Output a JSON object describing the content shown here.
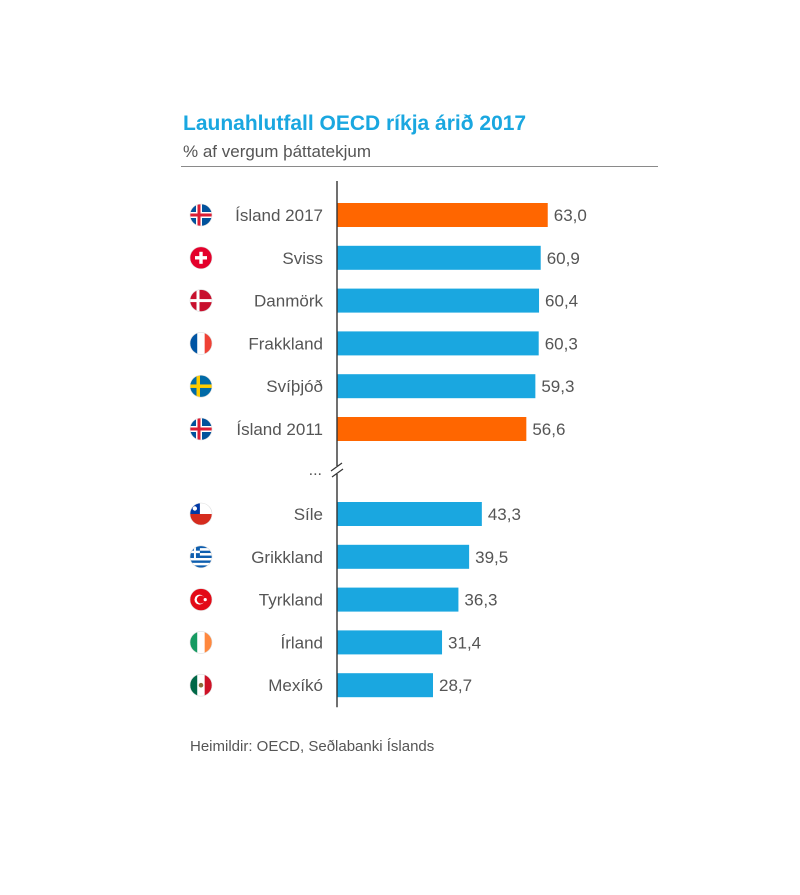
{
  "title": "Launahlutfall OECD ríkja árið 2017",
  "subtitle": "% af vergum þáttatekjum",
  "source": "Heimildir: OECD, Seðlabanki Íslands",
  "ellipsis": "...",
  "colors": {
    "title": "#1aa7e0",
    "bar_default": "#1aa7e0",
    "bar_highlight": "#ff6600",
    "text": "#555555",
    "axis": "#333333"
  },
  "chart_data": {
    "type": "bar",
    "orientation": "horizontal",
    "title": "Launahlutfall OECD ríkja árið 2017",
    "subtitle": "% af vergum þáttatekjum",
    "xlabel": "",
    "ylabel": "",
    "axis_break": true,
    "groups": [
      {
        "name": "top",
        "categories": [
          "Ísland 2017",
          "Sviss",
          "Danmörk",
          "Frakkland",
          "Svíþjóð",
          "Ísland 2011"
        ],
        "values": [
          63.0,
          60.9,
          60.4,
          60.3,
          59.3,
          56.6
        ],
        "labels": [
          "63,0",
          "60,9",
          "60,4",
          "60,3",
          "59,3",
          "56,6"
        ],
        "flags": [
          "iceland-flag-icon",
          "switzerland-flag-icon",
          "denmark-flag-icon",
          "france-flag-icon",
          "sweden-flag-icon",
          "iceland-flag-icon"
        ],
        "highlight": [
          true,
          false,
          false,
          false,
          false,
          true
        ]
      },
      {
        "name": "bottom",
        "categories": [
          "Síle",
          "Grikkland",
          "Tyrkland",
          "Írland",
          "Mexíkó"
        ],
        "values": [
          43.3,
          39.5,
          36.3,
          31.4,
          28.7
        ],
        "labels": [
          "43,3",
          "39,5",
          "36,3",
          "31,4",
          "28,7"
        ],
        "flags": [
          "chile-flag-icon",
          "greece-flag-icon",
          "turkey-flag-icon",
          "ireland-flag-icon",
          "mexico-flag-icon"
        ],
        "highlight": [
          false,
          false,
          false,
          false,
          false
        ]
      }
    ]
  }
}
